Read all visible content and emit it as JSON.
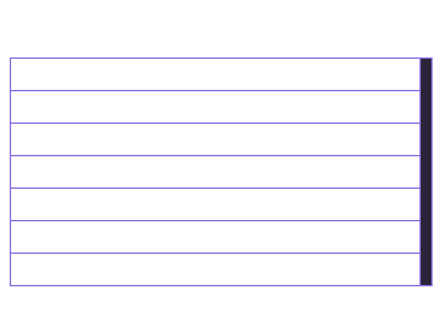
{
  "list": {
    "rows": [
      {
        "label": ""
      },
      {
        "label": ""
      },
      {
        "label": ""
      },
      {
        "label": ""
      },
      {
        "label": ""
      },
      {
        "label": ""
      },
      {
        "label": ""
      }
    ]
  },
  "colors": {
    "border": "#8a6fe0",
    "scrollbar": "#2a2438",
    "background": "#ffffff"
  }
}
